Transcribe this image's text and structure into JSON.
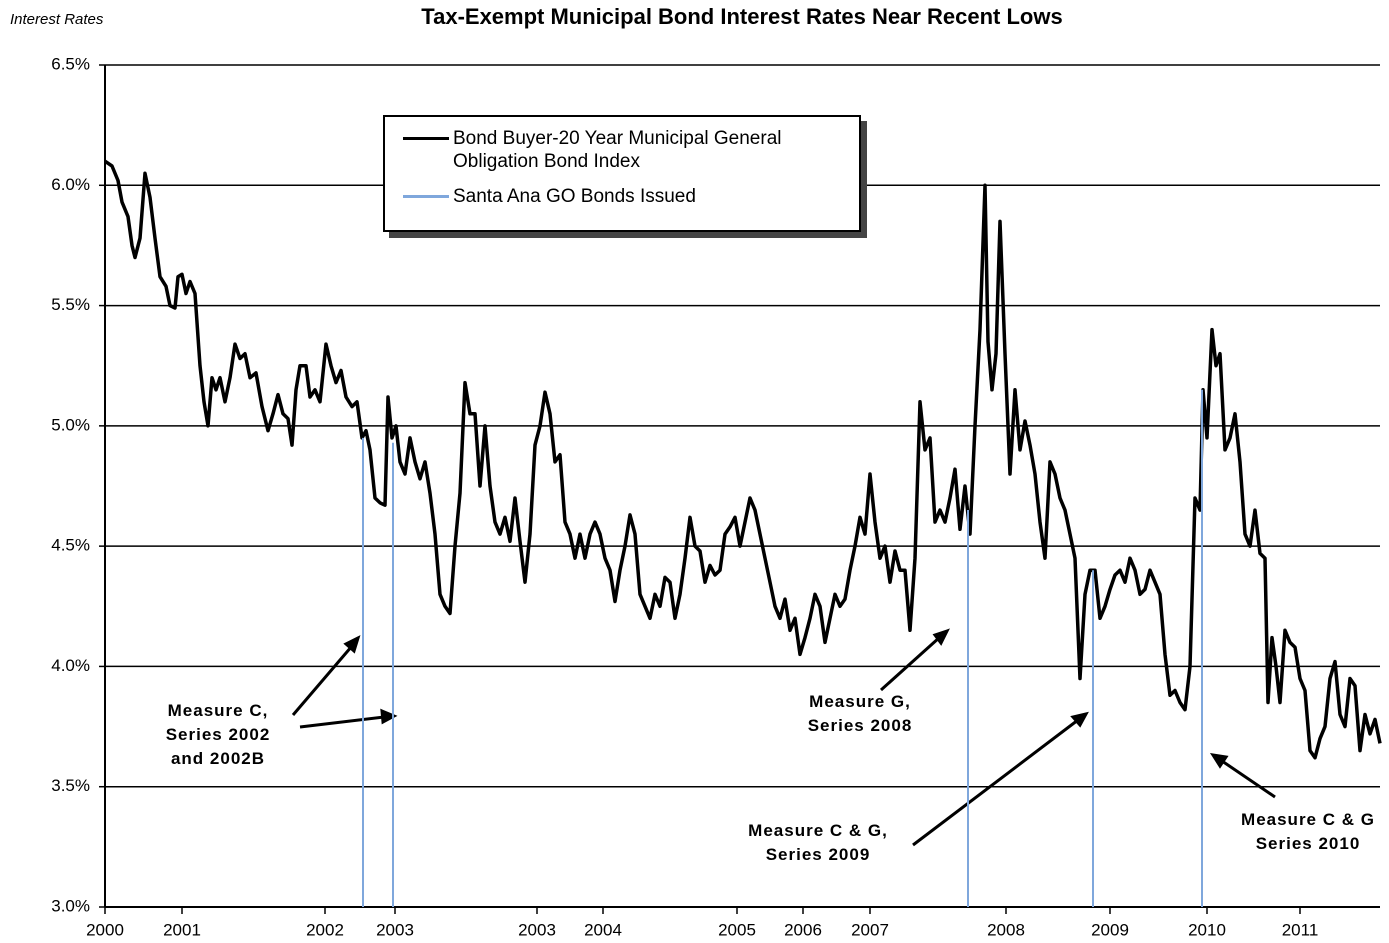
{
  "chart_data": {
    "type": "line",
    "title": "Tax-Exempt Municipal Bond Interest Rates Near Recent Lows",
    "y_axis_label": "Interest Rates",
    "xlim": [
      2000,
      2012.75
    ],
    "xticks": [
      {
        "value": 2000,
        "label": "2000"
      },
      {
        "value": 2000.77,
        "label": "2001"
      },
      {
        "value": 2002.2,
        "label": "2002"
      },
      {
        "value": 2002.9,
        "label": "2003"
      },
      {
        "value": 2004.32,
        "label": "2003"
      },
      {
        "value": 2004.98,
        "label": "2004"
      },
      {
        "value": 2006.32,
        "label": "2005"
      },
      {
        "value": 2006.98,
        "label": "2006"
      },
      {
        "value": 2007.65,
        "label": "2007"
      },
      {
        "value": 2009.01,
        "label": "2008"
      },
      {
        "value": 2010.05,
        "label": "2009"
      },
      {
        "value": 2011.02,
        "label": "2010"
      },
      {
        "value": 2011.95,
        "label": "2011"
      }
    ],
    "ylim": [
      3,
      6.5
    ],
    "yticks": [
      {
        "value": 3,
        "label": "3.0%"
      },
      {
        "value": 3.5,
        "label": "3.5%"
      },
      {
        "value": 4,
        "label": "4.0%"
      },
      {
        "value": 4.5,
        "label": "4.5%"
      },
      {
        "value": 5,
        "label": "5.0%"
      },
      {
        "value": 5.5,
        "label": "5.5%"
      },
      {
        "value": 6,
        "label": "6.0%"
      },
      {
        "value": 6.5,
        "label": "6.5%"
      }
    ],
    "grid": true,
    "series": [
      {
        "name": "Bond Buyer-20 Year Municipal General Obligation Bond Index",
        "color": "#000000",
        "style": "line",
        "x": [
          2000,
          2000.07,
          2000.13,
          2000.17,
          2000.23,
          2000.27,
          2000.3,
          2000.35,
          2000.4,
          2000.45,
          2000.5,
          2000.55,
          2000.61,
          2000.65,
          2000.7,
          2000.73,
          2000.77,
          2000.81,
          2000.85,
          2000.9,
          2000.95,
          2000.99,
          2001.03,
          2001.07,
          2001.11,
          2001.15,
          2001.2,
          2001.25,
          2001.3,
          2001.35,
          2001.4,
          2001.45,
          2001.51,
          2001.57,
          2001.63,
          2001.68,
          2001.73,
          2001.78,
          2001.83,
          2001.87,
          2001.91,
          2001.95,
          2002.01,
          2002.05,
          2002.1,
          2002.15,
          2002.21,
          2002.26,
          2002.31,
          2002.36,
          2002.41,
          2002.47,
          2002.52,
          2002.57,
          2002.61,
          2002.65,
          2002.7,
          2002.75,
          2002.8,
          2002.83,
          2002.87,
          2002.91,
          2002.95,
          2003,
          2003.05,
          2003.1,
          2003.15,
          2003.2,
          2003.25,
          2003.3,
          2003.35,
          2003.4,
          2003.45,
          2003.5,
          2003.55,
          2003.6,
          2003.65,
          2003.7,
          2003.75,
          2003.8,
          2003.85,
          2003.9,
          2003.95,
          2004,
          2004.05,
          2004.1,
          2004.15,
          2004.2,
          2004.25,
          2004.3,
          2004.35,
          2004.4,
          2004.45,
          2004.5,
          2004.55,
          2004.6,
          2004.65,
          2004.7,
          2004.75,
          2004.8,
          2004.85,
          2004.9,
          2004.95,
          2005,
          2005.05,
          2005.1,
          2005.15,
          2005.2,
          2005.25,
          2005.3,
          2005.35,
          2005.4,
          2005.45,
          2005.5,
          2005.55,
          2005.6,
          2005.65,
          2005.7,
          2005.75,
          2005.8,
          2005.85,
          2005.9,
          2005.95,
          2006,
          2006.05,
          2006.1,
          2006.15,
          2006.2,
          2006.25,
          2006.3,
          2006.35,
          2006.4,
          2006.45,
          2006.5,
          2006.55,
          2006.6,
          2006.65,
          2006.7,
          2006.75,
          2006.8,
          2006.85,
          2006.9,
          2006.95,
          2007,
          2007.05,
          2007.1,
          2007.15,
          2007.2,
          2007.25,
          2007.3,
          2007.35,
          2007.4,
          2007.45,
          2007.5,
          2007.55,
          2007.6,
          2007.65,
          2007.7,
          2007.75,
          2007.8,
          2007.85,
          2007.9,
          2007.95,
          2008,
          2008.05,
          2008.1,
          2008.15,
          2008.2,
          2008.25,
          2008.3,
          2008.35,
          2008.4,
          2008.45,
          2008.5,
          2008.55,
          2008.6,
          2008.65,
          2008.7,
          2008.75,
          2008.8,
          2008.83,
          2008.87,
          2008.91,
          2008.95,
          2009,
          2009.05,
          2009.1,
          2009.15,
          2009.2,
          2009.25,
          2009.3,
          2009.35,
          2009.4,
          2009.45,
          2009.5,
          2009.55,
          2009.6,
          2009.65,
          2009.7,
          2009.75,
          2009.8,
          2009.85,
          2009.9,
          2009.95,
          2010,
          2010.05,
          2010.1,
          2010.15,
          2010.2,
          2010.25,
          2010.3,
          2010.35,
          2010.4,
          2010.45,
          2010.5,
          2010.55,
          2010.6,
          2010.65,
          2010.7,
          2010.75,
          2010.8,
          2010.85,
          2010.9,
          2010.95,
          2010.98,
          2011.02,
          2011.07,
          2011.11,
          2011.15,
          2011.2,
          2011.25,
          2011.3,
          2011.35,
          2011.4,
          2011.45,
          2011.5,
          2011.55,
          2011.6,
          2011.63,
          2011.67,
          2011.71,
          2011.75,
          2011.8,
          2011.85,
          2011.9,
          2011.95,
          2012,
          2012.05,
          2012.1,
          2012.15,
          2012.2,
          2012.25,
          2012.3,
          2012.35,
          2012.4,
          2012.45,
          2012.5,
          2012.55,
          2012.6,
          2012.65,
          2012.7,
          2012.75
        ],
        "values": [
          6.1,
          6.08,
          6.02,
          5.93,
          5.87,
          5.75,
          5.7,
          5.78,
          6.05,
          5.95,
          5.78,
          5.62,
          5.58,
          5.5,
          5.49,
          5.62,
          5.63,
          5.55,
          5.6,
          5.55,
          5.25,
          5.1,
          5.0,
          5.2,
          5.15,
          5.2,
          5.1,
          5.2,
          5.34,
          5.28,
          5.3,
          5.2,
          5.22,
          5.08,
          4.98,
          5.05,
          5.13,
          5.05,
          5.03,
          4.92,
          5.15,
          5.25,
          5.25,
          5.12,
          5.15,
          5.1,
          5.34,
          5.25,
          5.18,
          5.23,
          5.12,
          5.08,
          5.1,
          4.95,
          4.98,
          4.9,
          4.7,
          4.68,
          4.67,
          5.12,
          4.95,
          5.0,
          4.85,
          4.8,
          4.95,
          4.85,
          4.78,
          4.85,
          4.72,
          4.55,
          4.3,
          4.25,
          4.22,
          4.5,
          4.72,
          5.18,
          5.05,
          5.05,
          4.75,
          5.0,
          4.75,
          4.6,
          4.55,
          4.62,
          4.52,
          4.7,
          4.52,
          4.35,
          4.55,
          4.92,
          5.0,
          5.14,
          5.05,
          4.85,
          4.88,
          4.6,
          4.55,
          4.45,
          4.55,
          4.45,
          4.55,
          4.6,
          4.55,
          4.45,
          4.4,
          4.27,
          4.4,
          4.5,
          4.63,
          4.55,
          4.3,
          4.25,
          4.2,
          4.3,
          4.25,
          4.37,
          4.35,
          4.2,
          4.3,
          4.45,
          4.62,
          4.5,
          4.48,
          4.35,
          4.42,
          4.38,
          4.4,
          4.55,
          4.58,
          4.62,
          4.5,
          4.6,
          4.7,
          4.65,
          4.55,
          4.45,
          4.35,
          4.25,
          4.2,
          4.28,
          4.15,
          4.2,
          4.05,
          4.12,
          4.2,
          4.3,
          4.25,
          4.1,
          4.2,
          4.3,
          4.25,
          4.28,
          4.4,
          4.5,
          4.62,
          4.55,
          4.8,
          4.6,
          4.45,
          4.5,
          4.35,
          4.48,
          4.4,
          4.4,
          4.15,
          4.45,
          5.1,
          4.9,
          4.95,
          4.6,
          4.65,
          4.6,
          4.7,
          4.82,
          4.57,
          4.75,
          4.55,
          5.0,
          5.4,
          6.0,
          5.35,
          5.15,
          5.3,
          5.85,
          5.3,
          4.8,
          5.15,
          4.9,
          5.02,
          4.92,
          4.8,
          4.6,
          4.45,
          4.85,
          4.8,
          4.7,
          4.65,
          4.55,
          4.45,
          3.95,
          4.3,
          4.4,
          4.4,
          4.2,
          4.25,
          4.32,
          4.38,
          4.4,
          4.35,
          4.45,
          4.4,
          4.3,
          4.32,
          4.4,
          4.35,
          4.3,
          4.05,
          3.88,
          3.9,
          3.85,
          3.82,
          4.0,
          4.7,
          4.65,
          5.15,
          4.95,
          5.4,
          5.25,
          5.3,
          4.9,
          4.95,
          5.05,
          4.85,
          4.55,
          4.5,
          4.65,
          4.47,
          4.45,
          3.85,
          4.12,
          4.0,
          3.85,
          4.15,
          4.1,
          4.08,
          3.95,
          3.9,
          3.65,
          3.62,
          3.7,
          3.75,
          3.95,
          4.02,
          3.8,
          3.75,
          3.95,
          3.92,
          3.65,
          3.8,
          3.72,
          3.78,
          3.68
        ]
      },
      {
        "name": "Santa Ana GO Bonds Issued",
        "color": "#7fa7dc",
        "style": "drop-line",
        "x": [
          2002.58,
          2002.88,
          2008.63,
          2009.88,
          2010.97
        ],
        "values": [
          4.95,
          4.93,
          4.65,
          4.4,
          5.15
        ]
      }
    ],
    "annotations": [
      {
        "lines": [
          "Measure C,",
          "Series 2002",
          "and 2002B"
        ]
      },
      {
        "lines": [
          "Measure G,",
          "Series 2008"
        ]
      },
      {
        "lines": [
          "Measure C & G,",
          "Series 2009"
        ]
      },
      {
        "lines": [
          "Measure C & G",
          "Series 2010"
        ]
      }
    ]
  }
}
